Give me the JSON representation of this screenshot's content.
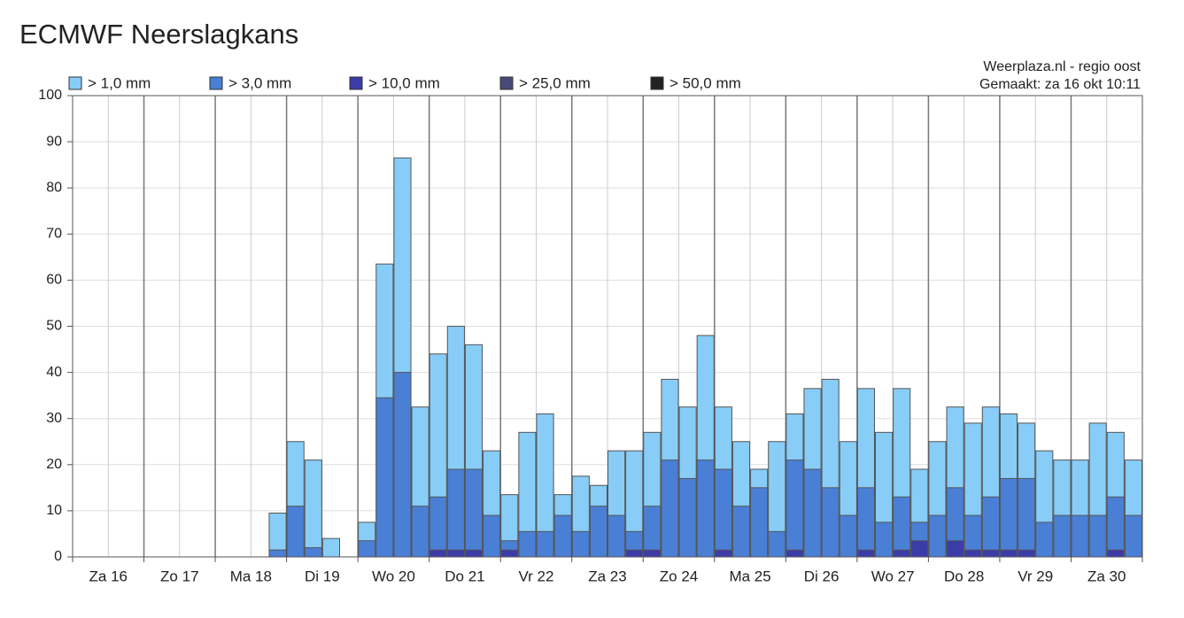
{
  "chart_data": {
    "type": "bar",
    "title": "ECMWF Neerslagkans",
    "source": "Weerplaza.nl - regio oost",
    "created": "Gemaakt: za 16 okt 10:11",
    "categories": [
      "Za 16",
      "Zo 17",
      "Ma 18",
      "Di 19",
      "Wo 20",
      "Do 21",
      "Vr 22",
      "Za 23",
      "Zo 24",
      "Ma 25",
      "Di 26",
      "Wo 27",
      "Do 28",
      "Vr 29",
      "Za 30"
    ],
    "series": [
      {
        "name": "> 1,0 mm",
        "color": "#87cdf8",
        "values": [
          [
            0,
            0,
            0,
            0
          ],
          [
            0,
            0,
            0,
            0
          ],
          [
            0,
            0,
            0,
            9.5
          ],
          [
            25,
            21,
            4,
            0
          ],
          [
            7.5,
            63.5,
            86.5,
            32.5
          ],
          [
            44,
            50,
            46,
            23
          ],
          [
            13.5,
            27,
            31,
            13.5
          ],
          [
            17.5,
            15.5,
            23,
            23
          ],
          [
            27,
            38.5,
            32.5,
            48
          ],
          [
            32.5,
            25,
            19,
            25
          ],
          [
            31,
            36.5,
            38.5,
            25
          ],
          [
            36.5,
            27,
            36.5,
            19
          ],
          [
            25,
            32.5,
            29,
            32.5
          ],
          [
            31,
            29,
            23,
            21
          ],
          [
            21,
            29,
            27,
            21
          ]
        ]
      },
      {
        "name": "> 3,0 mm",
        "color": "#4a7fd6",
        "values": [
          [
            0,
            0,
            0,
            0
          ],
          [
            0,
            0,
            0,
            0
          ],
          [
            0,
            0,
            0,
            1.5
          ],
          [
            11,
            2,
            0,
            0
          ],
          [
            3.5,
            34.5,
            40,
            11
          ],
          [
            13,
            19,
            19,
            9
          ],
          [
            3.5,
            5.5,
            5.5,
            9
          ],
          [
            5.5,
            11,
            9,
            5.5
          ],
          [
            11,
            21,
            17,
            21
          ],
          [
            19,
            11,
            15,
            5.5
          ],
          [
            21,
            19,
            15,
            9
          ],
          [
            15,
            7.5,
            13,
            7.5
          ],
          [
            9,
            15,
            9,
            13
          ],
          [
            17,
            17,
            7.5,
            9
          ],
          [
            9,
            9,
            13,
            9
          ]
        ]
      },
      {
        "name": "> 10,0 mm",
        "color": "#3b3ca8",
        "values": [
          [
            0,
            0,
            0,
            0
          ],
          [
            0,
            0,
            0,
            0
          ],
          [
            0,
            0,
            0,
            0
          ],
          [
            0,
            0,
            0,
            0
          ],
          [
            0,
            0,
            0,
            0
          ],
          [
            1.5,
            1.5,
            1.5,
            0
          ],
          [
            1.5,
            0,
            0,
            0
          ],
          [
            0,
            0,
            0,
            1.5
          ],
          [
            1.5,
            0,
            0,
            0
          ],
          [
            1.5,
            0,
            0,
            0
          ],
          [
            1.5,
            0,
            0,
            0
          ],
          [
            1.5,
            0,
            1.5,
            3.5
          ],
          [
            0,
            3.5,
            1.5,
            1.5
          ],
          [
            1.5,
            1.5,
            0,
            0
          ],
          [
            0,
            0,
            1.5,
            0
          ]
        ]
      },
      {
        "name": "> 25,0 mm",
        "color": "#4a4a78",
        "values": [
          [
            0,
            0,
            0,
            0
          ],
          [
            0,
            0,
            0,
            0
          ],
          [
            0,
            0,
            0,
            0
          ],
          [
            0,
            0,
            0,
            0
          ],
          [
            0,
            0,
            0,
            0
          ],
          [
            0,
            0,
            0,
            0
          ],
          [
            0,
            0,
            0,
            0
          ],
          [
            0,
            0,
            0,
            0
          ],
          [
            0,
            0,
            0,
            0
          ],
          [
            0,
            0,
            0,
            0
          ],
          [
            0,
            0,
            0,
            0
          ],
          [
            0,
            0,
            0,
            0
          ],
          [
            0,
            0,
            0,
            0
          ],
          [
            0,
            0,
            0,
            0
          ],
          [
            0,
            0,
            0,
            0
          ]
        ]
      },
      {
        "name": "> 50,0 mm",
        "color": "#222222",
        "values": [
          [
            0,
            0,
            0,
            0
          ],
          [
            0,
            0,
            0,
            0
          ],
          [
            0,
            0,
            0,
            0
          ],
          [
            0,
            0,
            0,
            0
          ],
          [
            0,
            0,
            0,
            0
          ],
          [
            0,
            0,
            0,
            0
          ],
          [
            0,
            0,
            0,
            0
          ],
          [
            0,
            0,
            0,
            0
          ],
          [
            0,
            0,
            0,
            0
          ],
          [
            0,
            0,
            0,
            0
          ],
          [
            0,
            0,
            0,
            0
          ],
          [
            0,
            0,
            0,
            0
          ],
          [
            0,
            0,
            0,
            0
          ],
          [
            0,
            0,
            0,
            0
          ],
          [
            0,
            0,
            0,
            0
          ]
        ]
      }
    ],
    "ylim": [
      0,
      100
    ],
    "yticks": [
      0,
      10,
      20,
      30,
      40,
      50,
      60,
      70,
      80,
      90,
      100
    ],
    "grid": true
  }
}
